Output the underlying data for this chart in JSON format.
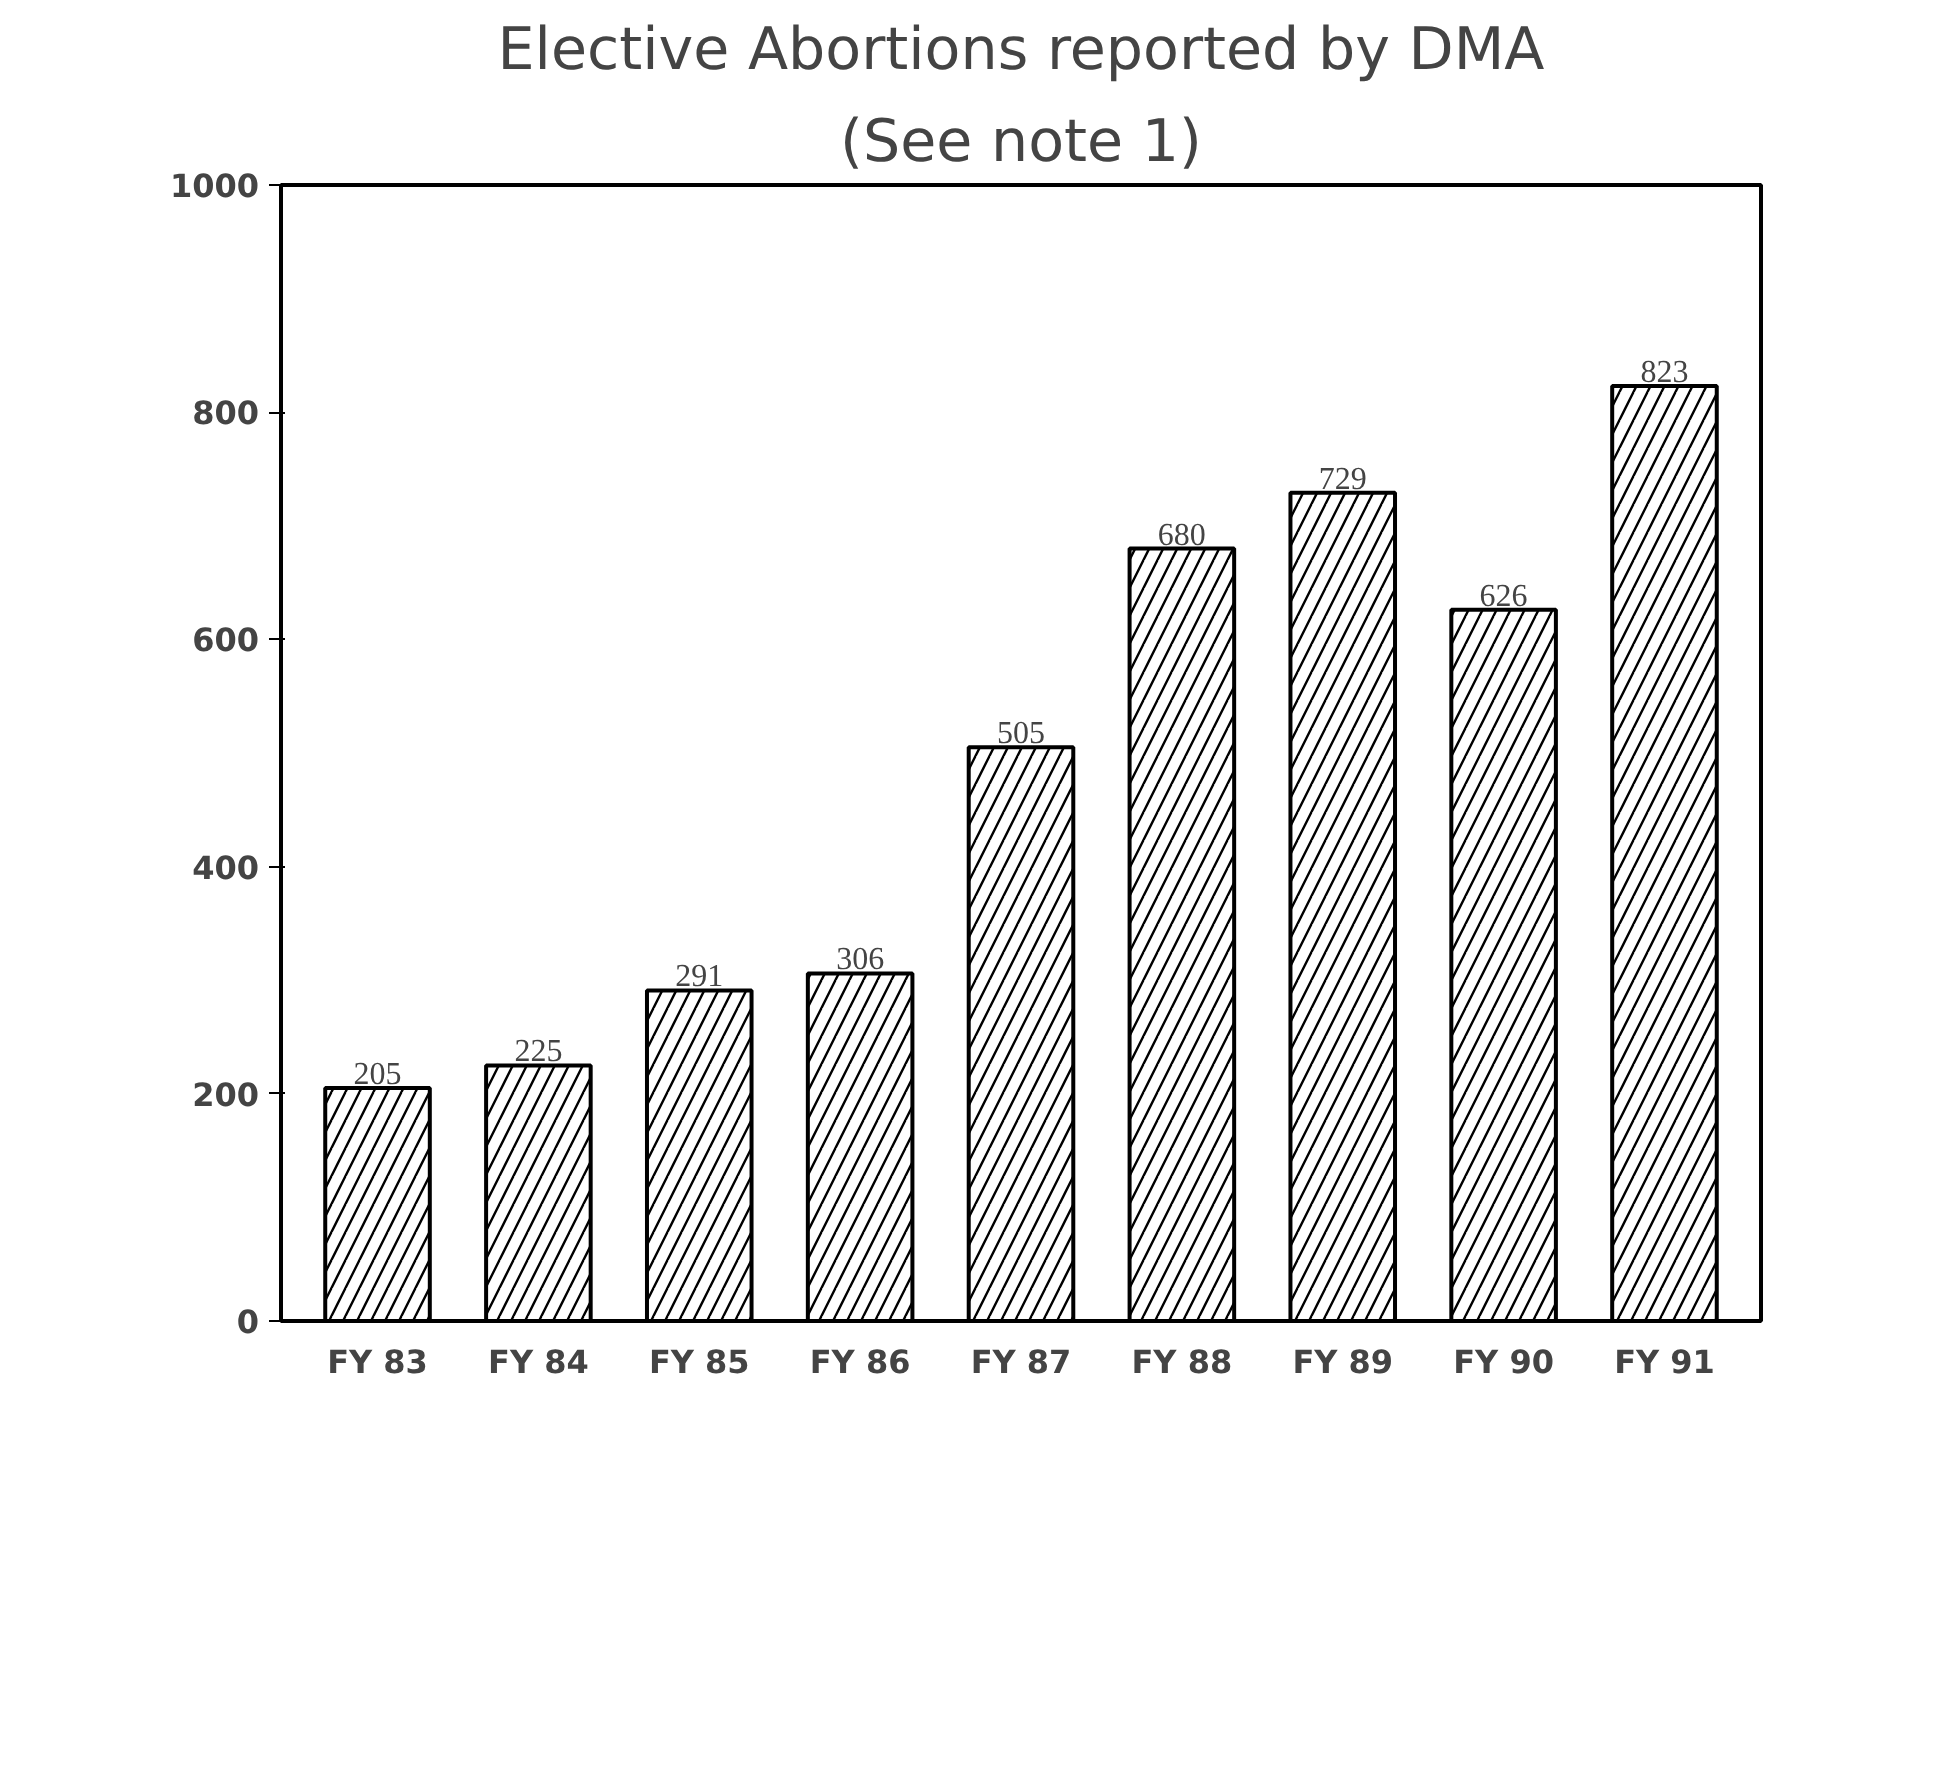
{
  "chart_data": {
    "type": "bar",
    "title": "Elective Abortions reported by DMA",
    "subtitle": "(See note 1)",
    "categories": [
      "FY 83",
      "FY 84",
      "FY 85",
      "FY 86",
      "FY 87",
      "FY 88",
      "FY 89",
      "FY 90",
      "FY 91"
    ],
    "values": [
      205,
      225,
      291,
      306,
      505,
      680,
      729,
      626,
      823
    ],
    "color": "#ffffff",
    "ylim": [
      0,
      1000
    ],
    "yticks": [
      0,
      200,
      400,
      600,
      800,
      1000
    ],
    "grid": false,
    "data_labels": true
  }
}
